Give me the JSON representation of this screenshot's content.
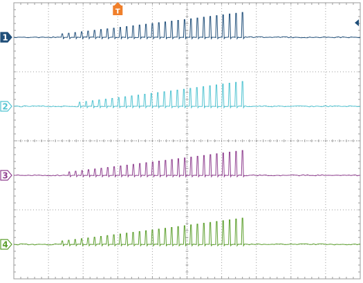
{
  "chart_data": {
    "type": "line",
    "title": "",
    "xlabel": "",
    "ylabel": "",
    "grid": true,
    "x_divisions": 10,
    "y_divisions": 8,
    "xlim": [
      0,
      10
    ],
    "ylim": [
      0,
      8
    ],
    "trigger_label": "T",
    "trigger_position_div": 3.0,
    "channels": [
      {
        "name": "1",
        "color": "#1f4e79",
        "baseline_div": 7.0,
        "first_div": 1.4,
        "last_div": 6.6,
        "count": 29,
        "start_amplitude_div": 0.1,
        "end_amplitude_div": 0.72,
        "level_arrow": true
      },
      {
        "name": "2",
        "color": "#4fc3d1",
        "baseline_div": 5.0,
        "first_div": 1.9,
        "last_div": 6.6,
        "count": 26,
        "start_amplitude_div": 0.12,
        "end_amplitude_div": 0.72,
        "level_arrow": false
      },
      {
        "name": "3",
        "color": "#8e3d8e",
        "baseline_div": 3.0,
        "first_div": 1.6,
        "last_div": 6.6,
        "count": 28,
        "start_amplitude_div": 0.1,
        "end_amplitude_div": 0.72,
        "level_arrow": false
      },
      {
        "name": "4",
        "color": "#5a9e2a",
        "baseline_div": 1.0,
        "first_div": 1.4,
        "last_div": 6.6,
        "count": 29,
        "start_amplitude_div": 0.1,
        "end_amplitude_div": 0.76,
        "level_arrow": false
      }
    ]
  },
  "colors": {
    "grid": "#9a9a9a",
    "frame": "#9a9a9a",
    "trigger": "#f07f2a"
  }
}
